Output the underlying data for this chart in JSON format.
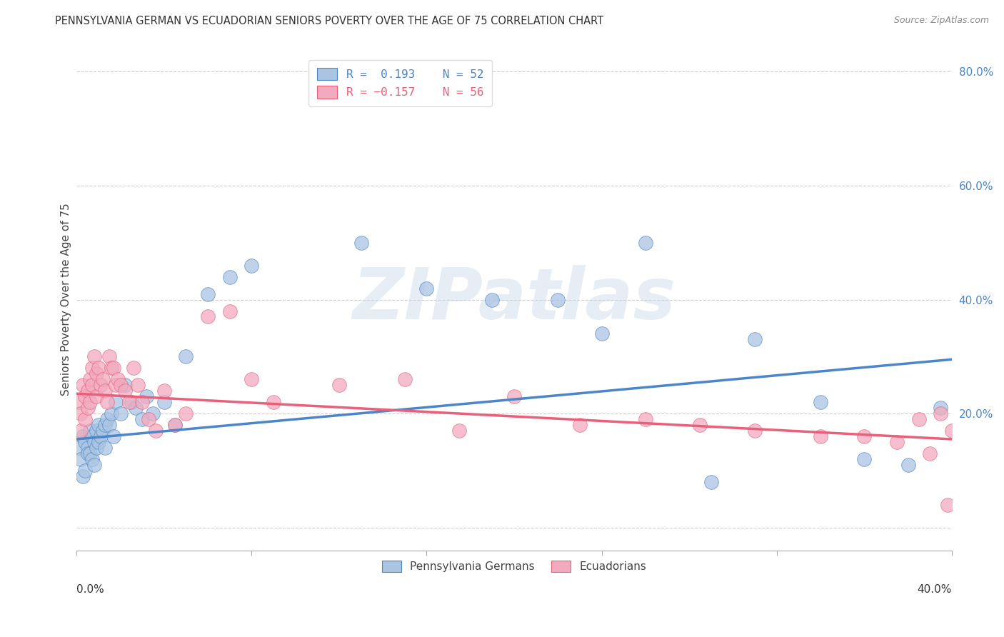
{
  "title": "PENNSYLVANIA GERMAN VS ECUADORIAN SENIORS POVERTY OVER THE AGE OF 75 CORRELATION CHART",
  "source": "Source: ZipAtlas.com",
  "ylabel": "Seniors Poverty Over the Age of 75",
  "yticks": [
    0.0,
    0.2,
    0.4,
    0.6,
    0.8
  ],
  "ytick_labels": [
    "",
    "20.0%",
    "40.0%",
    "60.0%",
    "80.0%"
  ],
  "xmin": 0.0,
  "xmax": 0.4,
  "ymin": -0.04,
  "ymax": 0.84,
  "blue_R": 0.193,
  "blue_N": 52,
  "pink_R": -0.157,
  "pink_N": 56,
  "blue_color": "#aac4e2",
  "pink_color": "#f2aabf",
  "blue_line_color": "#4a86c8",
  "pink_line_color": "#e8607a",
  "legend1_label": "Pennsylvania Germans",
  "legend2_label": "Ecuadorians",
  "blue_scatter_x": [
    0.001,
    0.002,
    0.003,
    0.003,
    0.004,
    0.004,
    0.005,
    0.005,
    0.006,
    0.006,
    0.007,
    0.007,
    0.008,
    0.008,
    0.009,
    0.009,
    0.01,
    0.01,
    0.011,
    0.012,
    0.013,
    0.013,
    0.014,
    0.015,
    0.016,
    0.017,
    0.018,
    0.02,
    0.022,
    0.025,
    0.027,
    0.03,
    0.032,
    0.035,
    0.04,
    0.045,
    0.05,
    0.06,
    0.07,
    0.08,
    0.13,
    0.16,
    0.19,
    0.22,
    0.24,
    0.26,
    0.29,
    0.31,
    0.34,
    0.36,
    0.38,
    0.395
  ],
  "blue_scatter_y": [
    0.14,
    0.12,
    0.16,
    0.09,
    0.15,
    0.1,
    0.14,
    0.13,
    0.17,
    0.13,
    0.16,
    0.12,
    0.15,
    0.11,
    0.17,
    0.14,
    0.18,
    0.15,
    0.16,
    0.17,
    0.18,
    0.14,
    0.19,
    0.18,
    0.2,
    0.16,
    0.22,
    0.2,
    0.25,
    0.22,
    0.21,
    0.19,
    0.23,
    0.2,
    0.22,
    0.18,
    0.3,
    0.41,
    0.44,
    0.46,
    0.5,
    0.42,
    0.4,
    0.4,
    0.34,
    0.5,
    0.08,
    0.33,
    0.22,
    0.12,
    0.11,
    0.21
  ],
  "pink_scatter_x": [
    0.001,
    0.002,
    0.002,
    0.003,
    0.004,
    0.004,
    0.005,
    0.005,
    0.006,
    0.006,
    0.007,
    0.007,
    0.008,
    0.009,
    0.009,
    0.01,
    0.011,
    0.012,
    0.013,
    0.014,
    0.015,
    0.016,
    0.017,
    0.018,
    0.019,
    0.02,
    0.022,
    0.024,
    0.026,
    0.028,
    0.03,
    0.033,
    0.036,
    0.04,
    0.045,
    0.05,
    0.06,
    0.07,
    0.08,
    0.09,
    0.12,
    0.15,
    0.175,
    0.2,
    0.23,
    0.26,
    0.285,
    0.31,
    0.34,
    0.36,
    0.375,
    0.385,
    0.39,
    0.395,
    0.398,
    0.4
  ],
  "pink_scatter_y": [
    0.22,
    0.2,
    0.17,
    0.25,
    0.23,
    0.19,
    0.24,
    0.21,
    0.26,
    0.22,
    0.28,
    0.25,
    0.3,
    0.27,
    0.23,
    0.28,
    0.25,
    0.26,
    0.24,
    0.22,
    0.3,
    0.28,
    0.28,
    0.25,
    0.26,
    0.25,
    0.24,
    0.22,
    0.28,
    0.25,
    0.22,
    0.19,
    0.17,
    0.24,
    0.18,
    0.2,
    0.37,
    0.38,
    0.26,
    0.22,
    0.25,
    0.26,
    0.17,
    0.23,
    0.18,
    0.19,
    0.18,
    0.17,
    0.16,
    0.16,
    0.15,
    0.19,
    0.13,
    0.2,
    0.04,
    0.17
  ],
  "blue_trend_x0": 0.0,
  "blue_trend_y0": 0.155,
  "blue_trend_x1": 0.4,
  "blue_trend_y1": 0.295,
  "pink_trend_x0": 0.0,
  "pink_trend_y0": 0.235,
  "pink_trend_x1": 0.4,
  "pink_trend_y1": 0.155
}
